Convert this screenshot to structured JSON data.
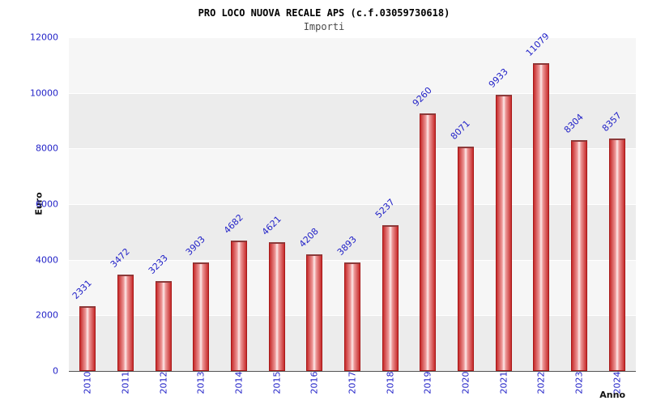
{
  "title": "PRO LOCO NUOVA RECALE APS (c.f.03059730618)",
  "subtitle": "Importi",
  "chart_data": {
    "type": "bar",
    "title": "PRO LOCO NUOVA RECALE APS (c.f.03059730618)",
    "subtitle": "Importi",
    "xlabel": "Anno",
    "ylabel": "Euro",
    "categories": [
      "2010",
      "2011",
      "2012",
      "2013",
      "2014",
      "2015",
      "2016",
      "2017",
      "2018",
      "2019",
      "2020",
      "2021",
      "2022",
      "2023",
      "2024"
    ],
    "values": [
      2331,
      3472,
      3233,
      3903,
      4682,
      4621,
      4208,
      3893,
      5237,
      9260,
      8071,
      9933,
      11079,
      8304,
      8357
    ],
    "ylim": [
      0,
      12000
    ],
    "ytick_interval": 2000,
    "ytick_labels": [
      "0",
      "2000",
      "4000",
      "6000",
      "8000",
      "10000",
      "12000"
    ],
    "grid": true,
    "legend": "none",
    "bar_color": "#c62b2b",
    "bar_highlight_color": "#fcebeb",
    "label_color": "#2323c8",
    "plot_band_colors": [
      "#ececec",
      "#f6f6f6"
    ]
  }
}
